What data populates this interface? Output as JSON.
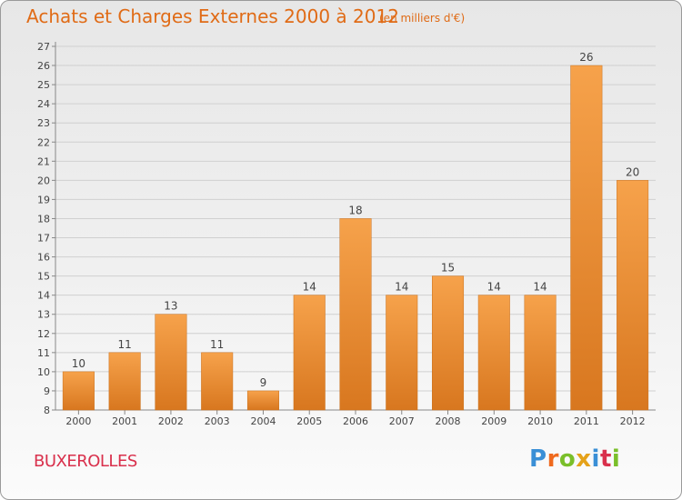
{
  "header": {
    "title": "Achats et Charges Externes 2000 à 2012",
    "unit": "(en milliers d'€)"
  },
  "footer": {
    "town": "BUXEROLLES",
    "logo_text": "Proxiti"
  },
  "colors": {
    "title": "#e06b16",
    "town": "#d9304c",
    "bar_light": "#f6a24b",
    "bar_dark": "#db7b21",
    "logo_letters": [
      "#3a8fd6",
      "#ef6a1f",
      "#7abf2a",
      "#e5a21a",
      "#3a8fd6",
      "#d9304c",
      "#7abf2a"
    ]
  },
  "chart_data": {
    "type": "bar",
    "title": "Achats et Charges Externes 2000 à 2012",
    "subtitle": "(en milliers d'€)",
    "xlabel": "",
    "ylabel": "",
    "categories": [
      "2000",
      "2001",
      "2002",
      "2003",
      "2004",
      "2005",
      "2006",
      "2007",
      "2008",
      "2009",
      "2010",
      "2011",
      "2012"
    ],
    "values": [
      10,
      11,
      13,
      11,
      9,
      14,
      18,
      14,
      15,
      14,
      14,
      26,
      20
    ],
    "ylim": [
      8,
      27
    ],
    "yticks": [
      8,
      9,
      10,
      11,
      12,
      13,
      14,
      15,
      16,
      17,
      18,
      19,
      20,
      21,
      22,
      23,
      24,
      25,
      26,
      27
    ],
    "grid": true,
    "legend": "none"
  }
}
